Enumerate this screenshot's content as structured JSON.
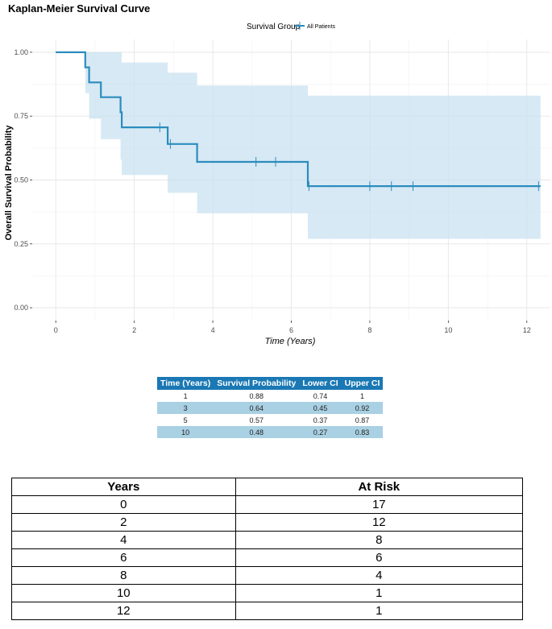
{
  "chart_data": {
    "type": "line",
    "title": "Kaplan-Meier Survival Curve",
    "xlabel": "Time (Years)",
    "ylabel": "Overall Survival Probability",
    "xlim": [
      -0.6,
      12.6
    ],
    "ylim": [
      -0.05,
      1.05
    ],
    "x_ticks": [
      0,
      2,
      4,
      6,
      8,
      10,
      12
    ],
    "y_ticks": [
      0.0,
      0.25,
      0.5,
      0.75,
      1.0
    ],
    "y_tick_labels": [
      "0.00",
      "0.25",
      "0.50",
      "0.75",
      "1.00"
    ],
    "grid": true,
    "legend": {
      "title": "Survival Group",
      "position": "top"
    },
    "series": [
      {
        "name": "All Patients",
        "color": "#2b8cbe",
        "ci_color": "#c6e0ef",
        "steps": [
          {
            "t": 0,
            "s": 1.0,
            "lo": 1.0,
            "hi": 1.0
          },
          {
            "t": 0.75,
            "s": 0.941,
            "lo": 0.84,
            "hi": 1.0
          },
          {
            "t": 0.85,
            "s": 0.882,
            "lo": 0.74,
            "hi": 1.0
          },
          {
            "t": 1.15,
            "s": 0.824,
            "lo": 0.66,
            "hi": 1.0
          },
          {
            "t": 1.65,
            "s": 0.765,
            "lo": 0.58,
            "hi": 1.0
          },
          {
            "t": 1.68,
            "s": 0.706,
            "lo": 0.52,
            "hi": 0.96
          },
          {
            "t": 2.85,
            "s": 0.641,
            "lo": 0.45,
            "hi": 0.92
          },
          {
            "t": 3.6,
            "s": 0.571,
            "lo": 0.37,
            "hi": 0.87
          },
          {
            "t": 6.42,
            "s": 0.476,
            "lo": 0.27,
            "hi": 0.83
          },
          {
            "t": 12.35,
            "s": 0.476,
            "lo": 0.27,
            "hi": 0.83
          }
        ],
        "censored": [
          {
            "t": 2.65,
            "s": 0.706
          },
          {
            "t": 2.92,
            "s": 0.641
          },
          {
            "t": 5.1,
            "s": 0.571
          },
          {
            "t": 5.6,
            "s": 0.571
          },
          {
            "t": 6.45,
            "s": 0.476
          },
          {
            "t": 8.0,
            "s": 0.476
          },
          {
            "t": 8.55,
            "s": 0.476
          },
          {
            "t": 9.1,
            "s": 0.476
          },
          {
            "t": 12.3,
            "s": 0.476
          }
        ]
      }
    ]
  },
  "summary_table": {
    "headers": [
      "Time (Years)",
      "Survival Probability",
      "Lower CI",
      "Upper CI"
    ],
    "rows": [
      [
        "1",
        "0.88",
        "0.74",
        "1"
      ],
      [
        "3",
        "0.64",
        "0.45",
        "0.92"
      ],
      [
        "5",
        "0.57",
        "0.37",
        "0.87"
      ],
      [
        "10",
        "0.48",
        "0.27",
        "0.83"
      ]
    ]
  },
  "risk_table": {
    "headers": [
      "Years",
      "At Risk"
    ],
    "rows": [
      [
        "0",
        "17"
      ],
      [
        "2",
        "12"
      ],
      [
        "4",
        "8"
      ],
      [
        "6",
        "6"
      ],
      [
        "8",
        "4"
      ],
      [
        "10",
        "1"
      ],
      [
        "12",
        "1"
      ]
    ]
  }
}
